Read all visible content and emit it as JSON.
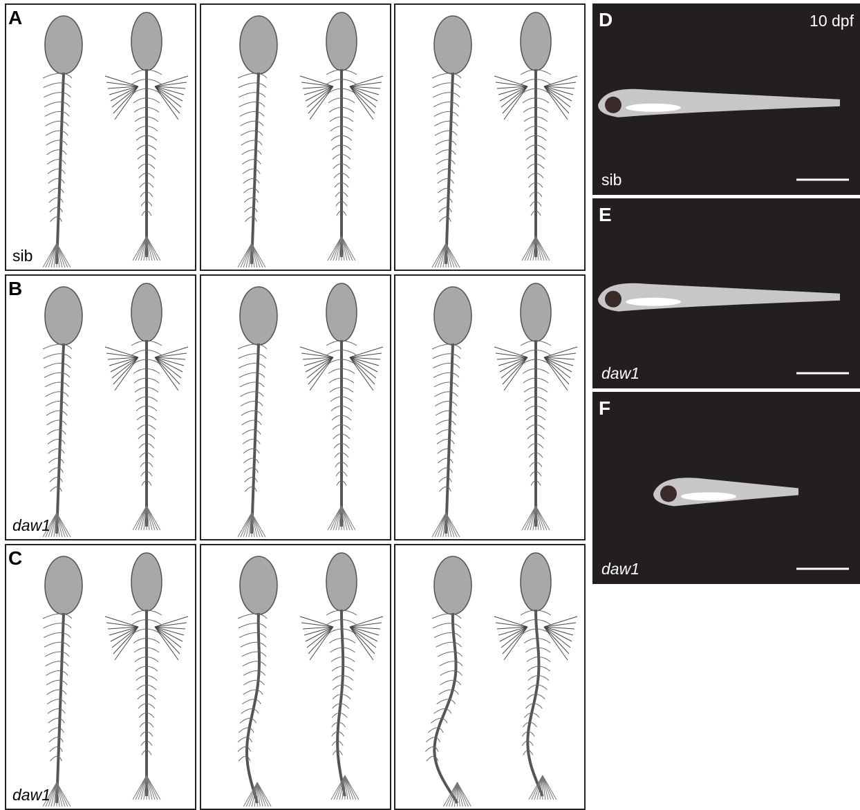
{
  "panels": [
    {
      "label": "A",
      "genotype": "sib"
    },
    {
      "label": "B",
      "genotype": "daw1"
    },
    {
      "label": "C",
      "genotype": "daw1"
    }
  ],
  "right_panels": [
    {
      "label": "D",
      "stage": "10 dpf",
      "genotype": "sib"
    },
    {
      "label": "E",
      "genotype": "daw1"
    },
    {
      "label": "F",
      "genotype": "daw1"
    }
  ]
}
